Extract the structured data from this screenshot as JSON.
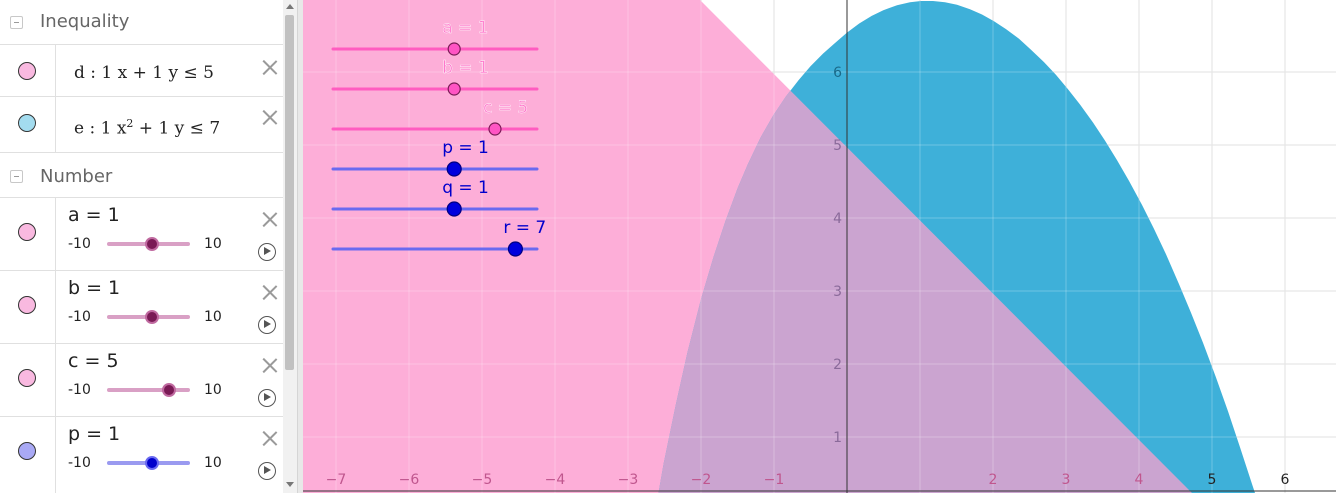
{
  "algebra": {
    "sections": [
      {
        "label": "Inequality"
      },
      {
        "label": "Number"
      }
    ],
    "inequalities": [
      {
        "name": "d",
        "expr": "d :  1 x + 1 y ≤ 5",
        "color": "#f9b9e0"
      },
      {
        "name": "e",
        "expr_pre": "e :  1 x",
        "sup": "2",
        "expr_post": " + 1 y ≤ 7",
        "color": "#a3dcef"
      }
    ],
    "numbers": [
      {
        "label": "a = 1",
        "min": "-10",
        "max": "10",
        "value": 1,
        "color": "#f9b9e0"
      },
      {
        "label": "b = 1",
        "min": "-10",
        "max": "10",
        "value": 1,
        "color": "#f9b9e0"
      },
      {
        "label": "c = 5",
        "min": "-10",
        "max": "10",
        "value": 5,
        "color": "#f9b9e0"
      },
      {
        "label": "p = 1",
        "min": "-10",
        "max": "10",
        "value": 1,
        "color": "#a9a9f5"
      }
    ]
  },
  "graphics": {
    "sliders": [
      {
        "label": "a = 1",
        "value": 1,
        "min": -10,
        "max": 10,
        "color": "pink"
      },
      {
        "label": "b = 1",
        "value": 1,
        "min": -10,
        "max": 10,
        "color": "pink"
      },
      {
        "label": "c = 5",
        "value": 5,
        "min": -10,
        "max": 10,
        "color": "pink"
      },
      {
        "label": "p = 1",
        "value": 1,
        "min": -10,
        "max": 10,
        "color": "blue"
      },
      {
        "label": "q = 1",
        "value": 1,
        "min": -10,
        "max": 10,
        "color": "blue"
      },
      {
        "label": "r = 7",
        "value": 7,
        "min": -10,
        "max": 10,
        "color": "blue"
      }
    ],
    "x_ticks": [
      "−7",
      "−6",
      "−5",
      "−4",
      "−3",
      "−2",
      "−1",
      "2",
      "3",
      "4",
      "5",
      "6"
    ],
    "y_ticks": [
      "1",
      "2",
      "3",
      "4",
      "5",
      "6"
    ],
    "colors": {
      "pink_fill": "#fdaed8",
      "blue_fill": "#3eb0d9",
      "overlap_fill": "#cba4d0"
    }
  }
}
